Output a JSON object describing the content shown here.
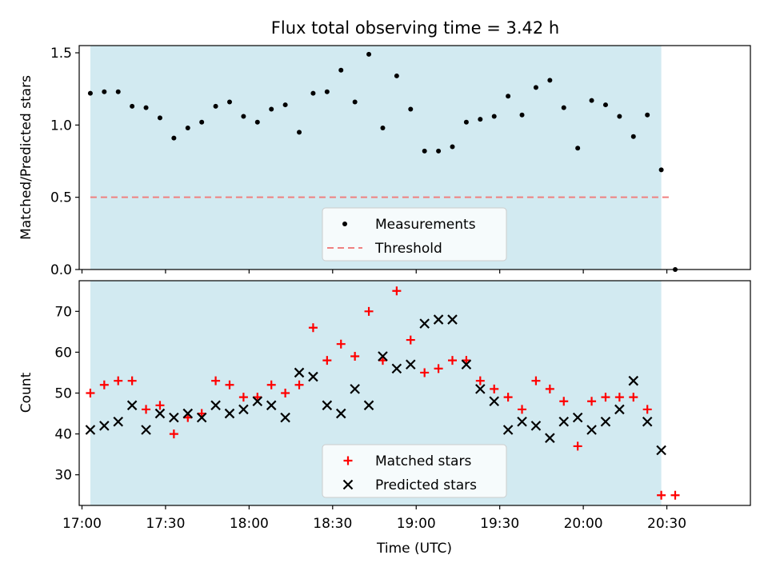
{
  "title": "Flux total observing time = 3.42 h",
  "chart_data": [
    {
      "type": "scatter",
      "panel": "top",
      "ylabel": "Matched/Predicted stars",
      "ylim": [
        0,
        1.55
      ],
      "yticks": [
        "0.0",
        "0.5",
        "1.0",
        "1.5"
      ],
      "xlim": [
        "16:59",
        "21:00"
      ],
      "shaded_range": [
        "17:03",
        "20:28"
      ],
      "shade_color": "#add8e6",
      "legend": {
        "placement": "lower center",
        "entries": [
          "Measurements",
          "Threshold"
        ]
      },
      "threshold": {
        "name": "Threshold",
        "value": 0.5,
        "x_start": "17:03",
        "x_end": "20:32",
        "color": "#f08080"
      },
      "series": [
        {
          "name": "Measurements",
          "marker": "dot",
          "color": "#000000",
          "x": [
            "17:03",
            "17:08",
            "17:13",
            "17:18",
            "17:23",
            "17:28",
            "17:33",
            "17:38",
            "17:43",
            "17:48",
            "17:53",
            "17:58",
            "18:03",
            "18:08",
            "18:13",
            "18:18",
            "18:23",
            "18:28",
            "18:33",
            "18:38",
            "18:43",
            "18:48",
            "18:53",
            "18:58",
            "19:03",
            "19:08",
            "19:13",
            "19:18",
            "19:23",
            "19:28",
            "19:33",
            "19:38",
            "19:43",
            "19:48",
            "19:53",
            "19:58",
            "20:03",
            "20:08",
            "20:13",
            "20:18",
            "20:23",
            "20:28",
            "20:33"
          ],
          "values": [
            1.22,
            1.23,
            1.23,
            1.13,
            1.12,
            1.05,
            0.91,
            0.98,
            1.02,
            1.13,
            1.16,
            1.06,
            1.02,
            1.11,
            1.14,
            0.95,
            1.22,
            1.23,
            1.38,
            1.16,
            1.49,
            0.98,
            1.34,
            1.11,
            0.82,
            0.82,
            0.85,
            1.02,
            1.04,
            1.06,
            1.2,
            1.07,
            1.26,
            1.31,
            1.12,
            0.84,
            1.17,
            1.14,
            1.06,
            0.92,
            1.07,
            0.69,
            0.0
          ]
        }
      ]
    },
    {
      "type": "scatter",
      "panel": "bottom",
      "xlabel": "Time (UTC)",
      "ylabel": "Count",
      "ylim": [
        22.5,
        77.5
      ],
      "yticks": [
        "30",
        "40",
        "50",
        "60",
        "70"
      ],
      "xticks": [
        "17:00",
        "17:30",
        "18:00",
        "18:30",
        "19:00",
        "19:30",
        "20:00",
        "20:30"
      ],
      "xlim": [
        "16:59",
        "21:00"
      ],
      "shaded_range": [
        "17:03",
        "20:28"
      ],
      "shade_color": "#add8e6",
      "legend": {
        "placement": "lower center",
        "entries": [
          "Matched stars",
          "Predicted stars"
        ]
      },
      "x": [
        "17:03",
        "17:08",
        "17:13",
        "17:18",
        "17:23",
        "17:28",
        "17:33",
        "17:38",
        "17:43",
        "17:48",
        "17:53",
        "17:58",
        "18:03",
        "18:08",
        "18:13",
        "18:18",
        "18:23",
        "18:28",
        "18:33",
        "18:38",
        "18:43",
        "18:48",
        "18:53",
        "18:58",
        "19:03",
        "19:08",
        "19:13",
        "19:18",
        "19:23",
        "19:28",
        "19:33",
        "19:38",
        "19:43",
        "19:48",
        "19:53",
        "19:58",
        "20:03",
        "20:08",
        "20:13",
        "20:18",
        "20:23",
        "20:28",
        "20:33"
      ],
      "series": [
        {
          "name": "Matched stars",
          "marker": "plus",
          "color": "#ff0000",
          "values": [
            50,
            52,
            53,
            53,
            46,
            47,
            40,
            44,
            45,
            53,
            52,
            49,
            49,
            52,
            50,
            52,
            66,
            58,
            62,
            59,
            70,
            58,
            75,
            63,
            55,
            56,
            58,
            58,
            53,
            51,
            49,
            46,
            53,
            51,
            48,
            37,
            48,
            49,
            49,
            49,
            46,
            25,
            25
          ]
        },
        {
          "name": "Predicted stars",
          "marker": "x",
          "color": "#000000",
          "values": [
            41,
            42,
            43,
            47,
            41,
            45,
            44,
            45,
            44,
            47,
            45,
            46,
            48,
            47,
            44,
            55,
            54,
            47,
            45,
            51,
            47,
            59,
            56,
            57,
            67,
            68,
            68,
            57,
            51,
            48,
            41,
            43,
            42,
            39,
            43,
            44,
            41,
            43,
            46,
            53,
            43,
            36,
            null
          ]
        }
      ]
    }
  ]
}
